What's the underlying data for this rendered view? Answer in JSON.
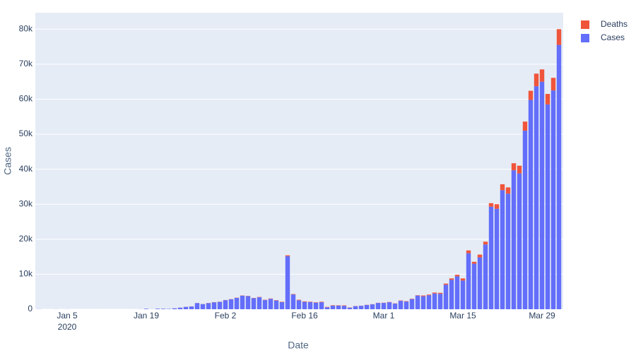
{
  "chart_data": {
    "type": "bar",
    "barmode": "stack",
    "x_label": "Date",
    "y_label": "Cases",
    "x": [
      "2019-12-31",
      "2020-01-01",
      "2020-01-02",
      "2020-01-03",
      "2020-01-04",
      "2020-01-05",
      "2020-01-06",
      "2020-01-07",
      "2020-01-08",
      "2020-01-09",
      "2020-01-10",
      "2020-01-11",
      "2020-01-12",
      "2020-01-13",
      "2020-01-14",
      "2020-01-15",
      "2020-01-16",
      "2020-01-17",
      "2020-01-18",
      "2020-01-19",
      "2020-01-20",
      "2020-01-21",
      "2020-01-22",
      "2020-01-23",
      "2020-01-24",
      "2020-01-25",
      "2020-01-26",
      "2020-01-27",
      "2020-01-28",
      "2020-01-29",
      "2020-01-30",
      "2020-01-31",
      "2020-02-01",
      "2020-02-02",
      "2020-02-03",
      "2020-02-04",
      "2020-02-05",
      "2020-02-06",
      "2020-02-07",
      "2020-02-08",
      "2020-02-09",
      "2020-02-10",
      "2020-02-11",
      "2020-02-12",
      "2020-02-13",
      "2020-02-14",
      "2020-02-15",
      "2020-02-16",
      "2020-02-17",
      "2020-02-18",
      "2020-02-19",
      "2020-02-20",
      "2020-02-21",
      "2020-02-22",
      "2020-02-23",
      "2020-02-24",
      "2020-02-25",
      "2020-02-26",
      "2020-02-27",
      "2020-02-28",
      "2020-02-29",
      "2020-03-01",
      "2020-03-02",
      "2020-03-03",
      "2020-03-04",
      "2020-03-05",
      "2020-03-06",
      "2020-03-07",
      "2020-03-08",
      "2020-03-09",
      "2020-03-10",
      "2020-03-11",
      "2020-03-12",
      "2020-03-13",
      "2020-03-14",
      "2020-03-15",
      "2020-03-16",
      "2020-03-17",
      "2020-03-18",
      "2020-03-19",
      "2020-03-20",
      "2020-03-21",
      "2020-03-22",
      "2020-03-23",
      "2020-03-24",
      "2020-03-25",
      "2020-03-26",
      "2020-03-27",
      "2020-03-28",
      "2020-03-29",
      "2020-03-30",
      "2020-03-31",
      "2020-04-01"
    ],
    "series": [
      {
        "name": "Cases",
        "color": "#636efa",
        "values": [
          27,
          0,
          0,
          17,
          0,
          15,
          0,
          0,
          0,
          0,
          0,
          0,
          0,
          0,
          0,
          0,
          0,
          4,
          17,
          136,
          20,
          151,
          140,
          97,
          259,
          441,
          665,
          787,
          1753,
          1466,
          1740,
          1980,
          2102,
          2590,
          2829,
          3237,
          3872,
          3727,
          3160,
          3418,
          2607,
          2974,
          2490,
          2028,
          15152,
          4217,
          2560,
          2099,
          2048,
          1886,
          1998,
          548,
          1029,
          1021,
          958,
          445,
          871,
          988,
          1208,
          1394,
          1800,
          1800,
          2000,
          1600,
          2400,
          2200,
          2900,
          3900,
          3700,
          4000,
          4500,
          4400,
          7000,
          8400,
          9400,
          8200,
          16000,
          13000,
          14800,
          18500,
          29300,
          28700,
          34000,
          33000,
          39700,
          38800,
          51000,
          59800,
          63700,
          65000,
          58500,
          62500,
          75500
        ]
      },
      {
        "name": "Deaths",
        "color": "#ef553b",
        "values": [
          0,
          0,
          0,
          0,
          0,
          0,
          0,
          0,
          0,
          0,
          0,
          1,
          0,
          0,
          0,
          0,
          0,
          1,
          0,
          0,
          1,
          3,
          11,
          0,
          9,
          15,
          15,
          25,
          25,
          26,
          38,
          43,
          46,
          45,
          57,
          64,
          66,
          73,
          73,
          86,
          89,
          97,
          108,
          97,
          254,
          121,
          143,
          142,
          106,
          98,
          139,
          118,
          109,
          97,
          150,
          71,
          52,
          29,
          44,
          47,
          35,
          58,
          70,
          73,
          98,
          107,
          104,
          101,
          227,
          188,
          262,
          287,
          326,
          412,
          450,
          600,
          800,
          550,
          800,
          800,
          1000,
          1300,
          1700,
          1800,
          2000,
          2200,
          2600,
          2600,
          3600,
          3500,
          3000,
          3600,
          4500
        ]
      }
    ],
    "xlim": [
      "2019-12-30T09:00:00Z",
      "2020-04-01T18:00:00Z"
    ],
    "xticks": [
      {
        "value": "2020-01-05",
        "label": "Jan 5\n2020"
      },
      {
        "value": "2020-01-19",
        "label": "Jan 19"
      },
      {
        "value": "2020-02-02",
        "label": "Feb 2"
      },
      {
        "value": "2020-02-16",
        "label": "Feb 16"
      },
      {
        "value": "2020-03-01",
        "label": "Mar 1"
      },
      {
        "value": "2020-03-15",
        "label": "Mar 15"
      },
      {
        "value": "2020-03-29",
        "label": "Mar 29"
      }
    ],
    "ylim": [
      0,
      84700
    ],
    "yticks": [
      0,
      {
        "value": 10000,
        "label": "10k"
      },
      {
        "value": 20000,
        "label": "20k"
      },
      {
        "value": 30000,
        "label": "30k"
      },
      {
        "value": 40000,
        "label": "40k"
      },
      {
        "value": 50000,
        "label": "50k"
      },
      {
        "value": 60000,
        "label": "60k"
      },
      {
        "value": 70000,
        "label": "70k"
      },
      {
        "value": 80000,
        "label": "80k"
      }
    ],
    "grid": true,
    "legend": "top-right"
  }
}
